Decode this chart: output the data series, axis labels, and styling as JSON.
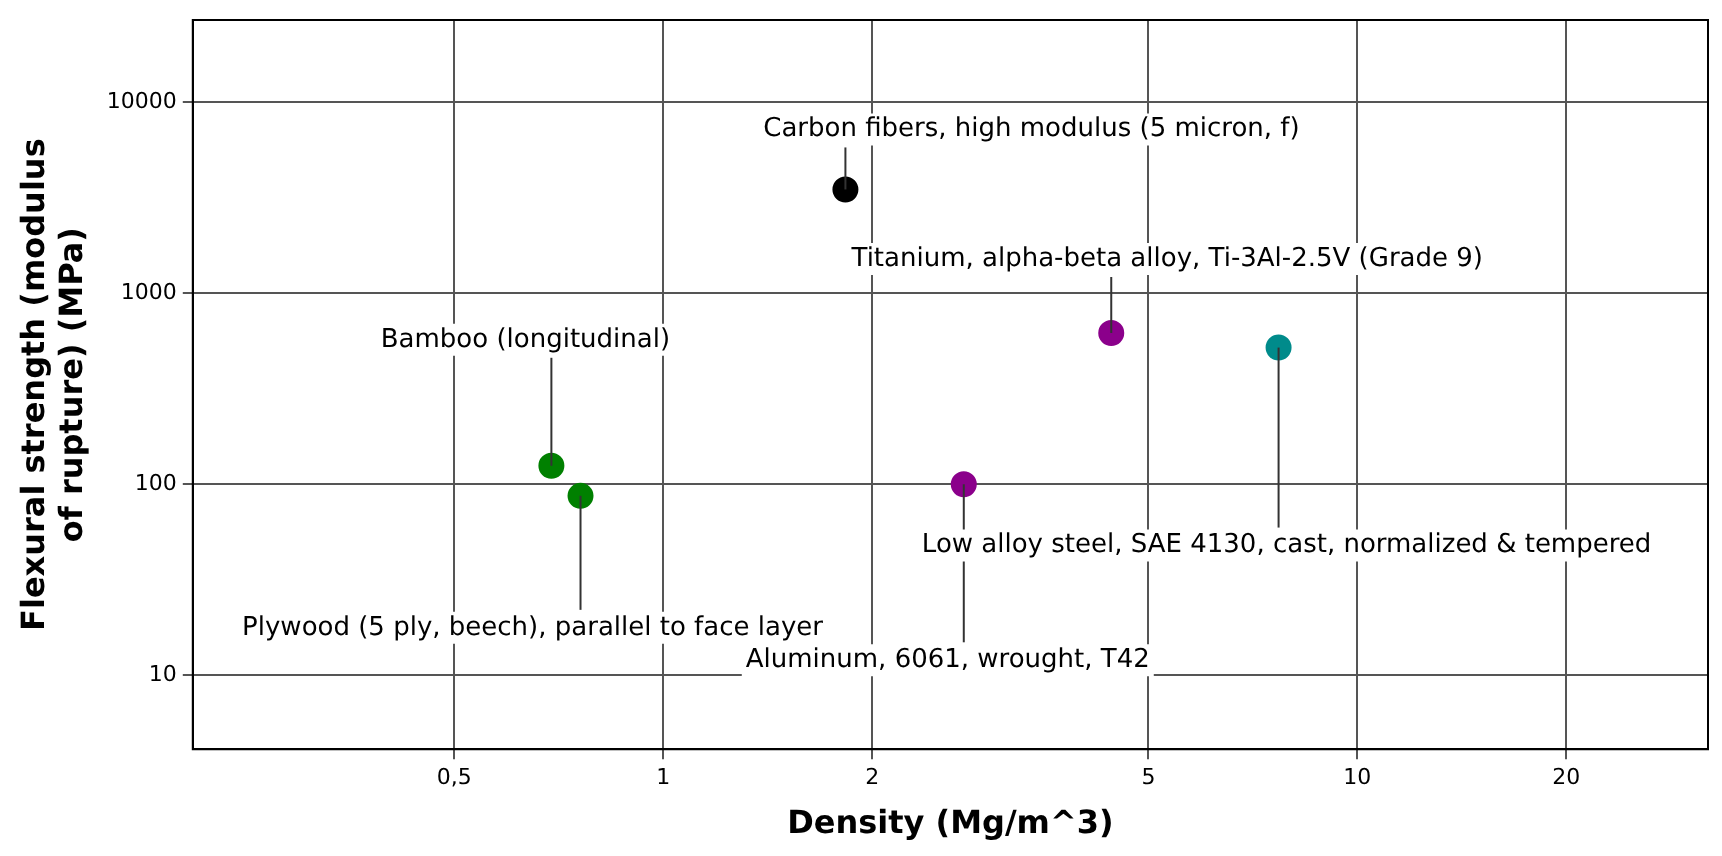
{
  "chart_data": {
    "type": "scatter",
    "xlabel": "Density (Mg/m^3)",
    "ylabel": "Flexural strength (modulus of rupture) (MPa)",
    "log": "xy",
    "grid": true,
    "legend": false,
    "marker": "circle",
    "xlim": [
      0.21,
      32
    ],
    "ylim": [
      4.1,
      27000
    ],
    "xticks": [
      {
        "value": 0.5,
        "label": "0,5"
      },
      1,
      2,
      5,
      10,
      20
    ],
    "yticks": [
      10,
      100,
      1000,
      10000
    ],
    "series": [
      {
        "name": "Carbon fibers, high modulus (5 micron, f)",
        "color": "#000000",
        "x": [
          1.83
        ],
        "values": [
          3500
        ]
      },
      {
        "name": "Titanium, alpha-beta alloy, Ti-3Al-2.5V (Grade 9)",
        "color": "#8b008b",
        "x": [
          4.42
        ],
        "values": [
          620
        ]
      },
      {
        "name": "Low alloy steel, SAE 4130, cast, normalized & tempered",
        "color": "#008b8b",
        "x": [
          7.7
        ],
        "values": [
          520
        ]
      },
      {
        "name": "Aluminum, 6061, wrought, T42",
        "color": "#8b008b",
        "x": [
          2.71
        ],
        "values": [
          100
        ]
      },
      {
        "name": "Bamboo (longitudinal)",
        "color": "#008000",
        "x": [
          0.69
        ],
        "values": [
          125
        ]
      },
      {
        "name": "Plywood (5 ply, beech), parallel to face layer",
        "color": "#008000",
        "x": [
          0.76
        ],
        "values": [
          87
        ]
      }
    ]
  }
}
